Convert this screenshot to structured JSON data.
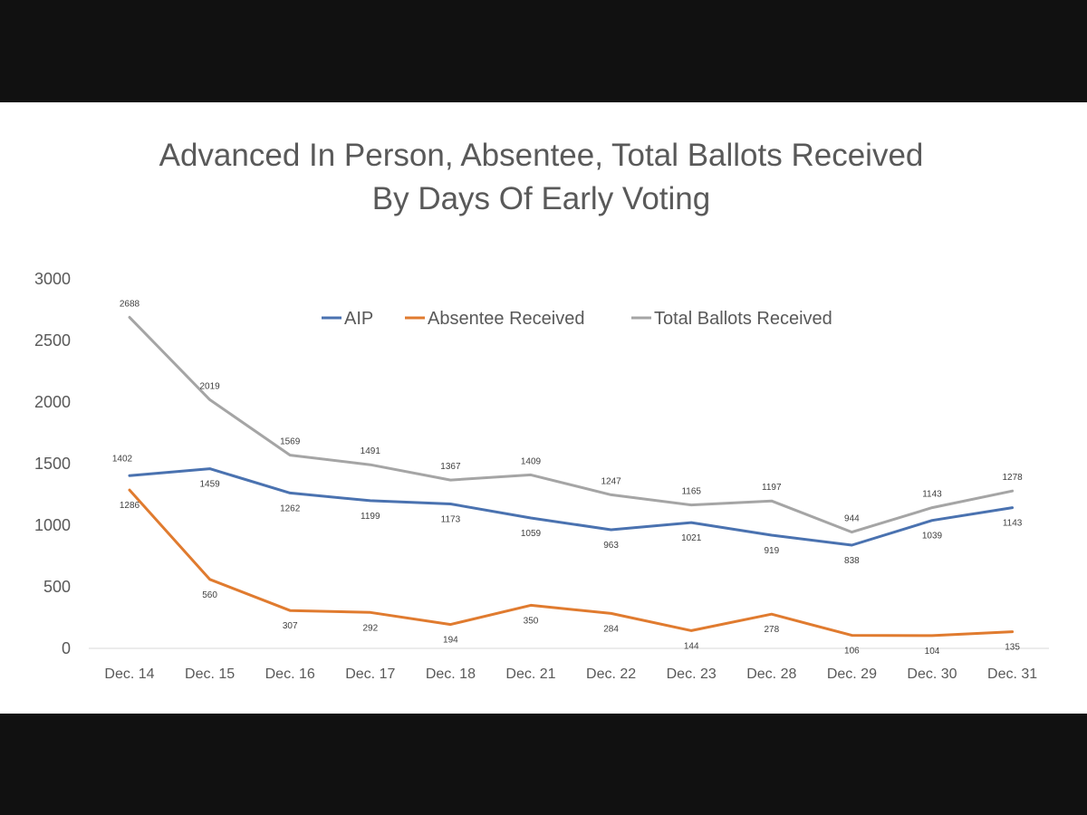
{
  "chart_data": {
    "type": "line",
    "title": "Advanced In Person, Absentee, Total Ballots Received",
    "subtitle": "By Days Of Early Voting",
    "categories": [
      "Dec. 14",
      "Dec. 15",
      "Dec. 16",
      "Dec. 17",
      "Dec. 18",
      "Dec. 21",
      "Dec. 22",
      "Dec. 23",
      "Dec. 28",
      "Dec. 29",
      "Dec. 30",
      "Dec. 31"
    ],
    "series": [
      {
        "name": "AIP",
        "color": "#4a72b0",
        "values": [
          1402,
          1459,
          1262,
          1199,
          1173,
          1059,
          963,
          1021,
          919,
          838,
          1039,
          1143
        ]
      },
      {
        "name": "Absentee Received",
        "color": "#e07b2f",
        "values": [
          1286,
          560,
          307,
          292,
          194,
          350,
          284,
          144,
          278,
          106,
          104,
          135
        ]
      },
      {
        "name": "Total Ballots Received",
        "color": "#a5a5a5",
        "values": [
          2688,
          2019,
          1569,
          1491,
          1367,
          1409,
          1247,
          1165,
          1197,
          944,
          1143,
          1278
        ]
      }
    ],
    "yticks": [
      "0",
      "500",
      "1000",
      "1500",
      "2000",
      "2500",
      "3000"
    ],
    "ylim": [
      0,
      3000
    ],
    "grid": false,
    "legend": "top-center",
    "xlabel": "",
    "ylabel": ""
  }
}
